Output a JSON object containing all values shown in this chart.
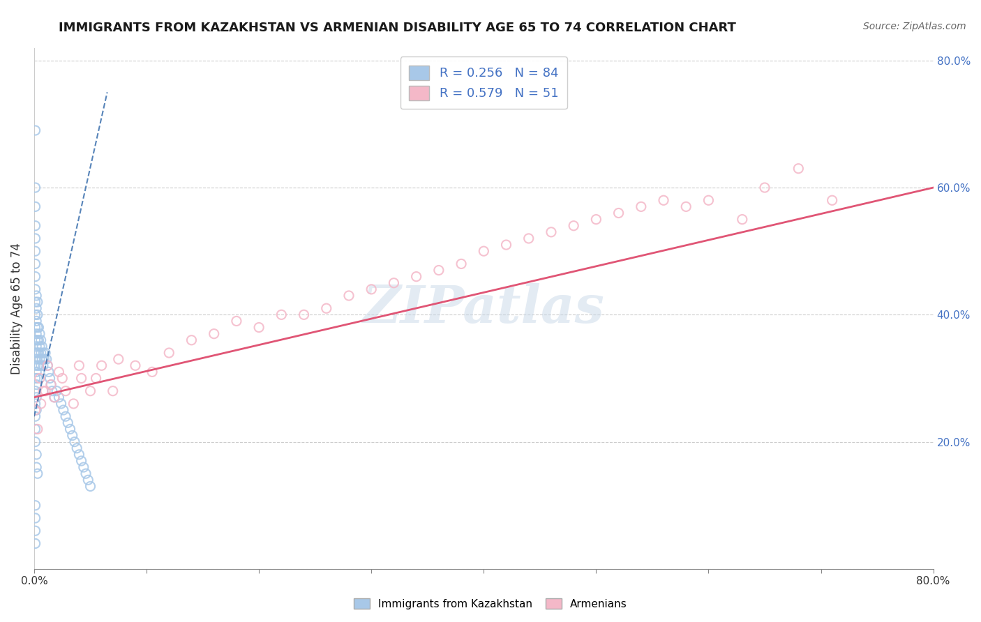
{
  "title": "IMMIGRANTS FROM KAZAKHSTAN VS ARMENIAN DISABILITY AGE 65 TO 74 CORRELATION CHART",
  "source": "Source: ZipAtlas.com",
  "ylabel_label": "Disability Age 65 to 74",
  "legend_label1": "Immigrants from Kazakhstan",
  "legend_label2": "Armenians",
  "r1": 0.256,
  "n1": 84,
  "r2": 0.579,
  "n2": 51,
  "color1": "#a8c8e8",
  "color2": "#f4b8c8",
  "trend_color1": "#3a6fad",
  "trend_color2": "#e05575",
  "bg_color": "#ffffff",
  "grid_color": "#cccccc",
  "xmin": 0.0,
  "xmax": 0.8,
  "ymin": 0.0,
  "ymax": 0.82,
  "watermark": "ZIPatlas",
  "title_fontsize": 13,
  "source_fontsize": 10,
  "axis_label_fontsize": 12,
  "tick_fontsize": 11,
  "legend_fontsize": 13,
  "scatter1_x": [
    0.001,
    0.001,
    0.001,
    0.001,
    0.001,
    0.001,
    0.001,
    0.001,
    0.001,
    0.001,
    0.001,
    0.001,
    0.001,
    0.001,
    0.001,
    0.001,
    0.001,
    0.001,
    0.001,
    0.001,
    0.002,
    0.002,
    0.002,
    0.002,
    0.002,
    0.002,
    0.002,
    0.002,
    0.002,
    0.002,
    0.003,
    0.003,
    0.003,
    0.003,
    0.003,
    0.003,
    0.003,
    0.004,
    0.004,
    0.004,
    0.004,
    0.005,
    0.005,
    0.005,
    0.006,
    0.006,
    0.006,
    0.007,
    0.007,
    0.008,
    0.008,
    0.009,
    0.01,
    0.011,
    0.012,
    0.013,
    0.014,
    0.015,
    0.016,
    0.018,
    0.02,
    0.022,
    0.024,
    0.026,
    0.028,
    0.03,
    0.032,
    0.034,
    0.036,
    0.038,
    0.04,
    0.042,
    0.044,
    0.046,
    0.048,
    0.05,
    0.001,
    0.001,
    0.001,
    0.001,
    0.001,
    0.002,
    0.002,
    0.003
  ],
  "scatter1_y": [
    0.69,
    0.6,
    0.57,
    0.54,
    0.52,
    0.5,
    0.48,
    0.46,
    0.44,
    0.42,
    0.4,
    0.38,
    0.36,
    0.34,
    0.32,
    0.3,
    0.28,
    0.26,
    0.24,
    0.22,
    0.43,
    0.41,
    0.39,
    0.37,
    0.35,
    0.33,
    0.31,
    0.29,
    0.27,
    0.25,
    0.42,
    0.4,
    0.38,
    0.36,
    0.34,
    0.32,
    0.3,
    0.38,
    0.36,
    0.34,
    0.32,
    0.37,
    0.35,
    0.33,
    0.36,
    0.34,
    0.32,
    0.35,
    0.33,
    0.34,
    0.32,
    0.33,
    0.34,
    0.33,
    0.32,
    0.31,
    0.3,
    0.29,
    0.28,
    0.27,
    0.28,
    0.27,
    0.26,
    0.25,
    0.24,
    0.23,
    0.22,
    0.21,
    0.2,
    0.19,
    0.18,
    0.17,
    0.16,
    0.15,
    0.14,
    0.13,
    0.1,
    0.08,
    0.06,
    0.04,
    0.2,
    0.18,
    0.16,
    0.15
  ],
  "scatter2_x": [
    0.005,
    0.008,
    0.012,
    0.015,
    0.018,
    0.022,
    0.028,
    0.035,
    0.042,
    0.05,
    0.06,
    0.075,
    0.09,
    0.105,
    0.12,
    0.14,
    0.16,
    0.18,
    0.2,
    0.22,
    0.24,
    0.26,
    0.28,
    0.3,
    0.32,
    0.34,
    0.36,
    0.38,
    0.4,
    0.42,
    0.44,
    0.46,
    0.48,
    0.5,
    0.52,
    0.54,
    0.56,
    0.58,
    0.6,
    0.63,
    0.65,
    0.68,
    0.71,
    0.001,
    0.003,
    0.006,
    0.01,
    0.025,
    0.04,
    0.055,
    0.07
  ],
  "scatter2_y": [
    0.3,
    0.28,
    0.32,
    0.29,
    0.27,
    0.31,
    0.28,
    0.26,
    0.3,
    0.28,
    0.32,
    0.33,
    0.32,
    0.31,
    0.34,
    0.36,
    0.37,
    0.39,
    0.38,
    0.4,
    0.4,
    0.41,
    0.43,
    0.44,
    0.45,
    0.46,
    0.47,
    0.48,
    0.5,
    0.51,
    0.52,
    0.53,
    0.54,
    0.55,
    0.56,
    0.57,
    0.58,
    0.57,
    0.58,
    0.55,
    0.6,
    0.63,
    0.58,
    0.25,
    0.22,
    0.26,
    0.28,
    0.3,
    0.32,
    0.3,
    0.28
  ],
  "trend1_x0": 0.0,
  "trend1_x1": 0.065,
  "trend1_y0": 0.24,
  "trend1_y1": 0.75,
  "trend2_x0": 0.0,
  "trend2_x1": 0.8,
  "trend2_y0": 0.27,
  "trend2_y1": 0.6
}
